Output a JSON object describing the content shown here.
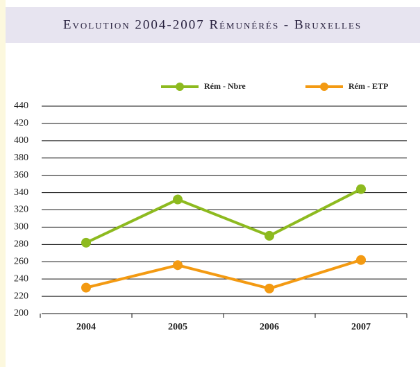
{
  "chart_data": {
    "type": "line",
    "title": "Evolution 2004-2007 Rémunérés - Bruxelles",
    "categories": [
      "2004",
      "2005",
      "2006",
      "2007"
    ],
    "series": [
      {
        "name": "Rém - Nbre",
        "color": "#8dba1f",
        "values": [
          282,
          332,
          290,
          344
        ]
      },
      {
        "name": "Rém - ETP",
        "color": "#f39a12",
        "values": [
          230,
          256,
          229,
          262
        ]
      }
    ],
    "ylim": [
      200,
      440
    ],
    "yticks": [
      200,
      220,
      240,
      260,
      280,
      300,
      320,
      340,
      360,
      380,
      400,
      420,
      440
    ],
    "grid": true,
    "legend": "top"
  }
}
